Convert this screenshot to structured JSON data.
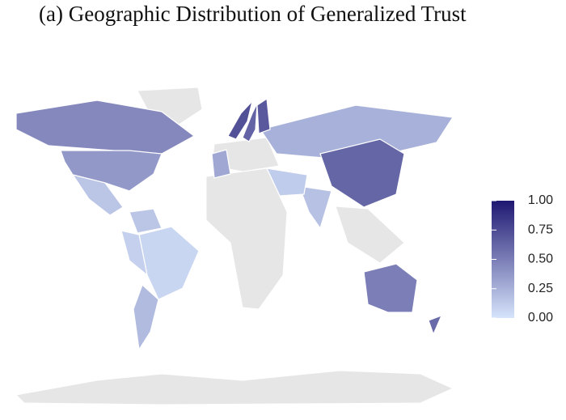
{
  "chart_data": {
    "type": "map",
    "title": "(a) Geographic Distribution of Generalized Trust",
    "no_data_color": "#e6e6e6",
    "low_color": "#d6e4fb",
    "high_color": "#1f1872",
    "lim": [
      0,
      1
    ],
    "ticks": [
      {
        "value": 0,
        "label": "0.00"
      },
      {
        "value": 0.25,
        "label": "0.25"
      },
      {
        "value": 0.5,
        "label": "0.50"
      },
      {
        "value": 0.75,
        "label": "0.75"
      },
      {
        "value": 1,
        "label": "1.00"
      }
    ],
    "values": [
      0.45,
      0.37,
      0.15,
      0.07,
      0.2,
      0.1,
      0.25,
      0.62,
      0.17,
      0.5,
      0.6,
      0.72,
      0.63,
      0.68,
      0.3,
      0.12,
      0.15
    ]
  }
}
